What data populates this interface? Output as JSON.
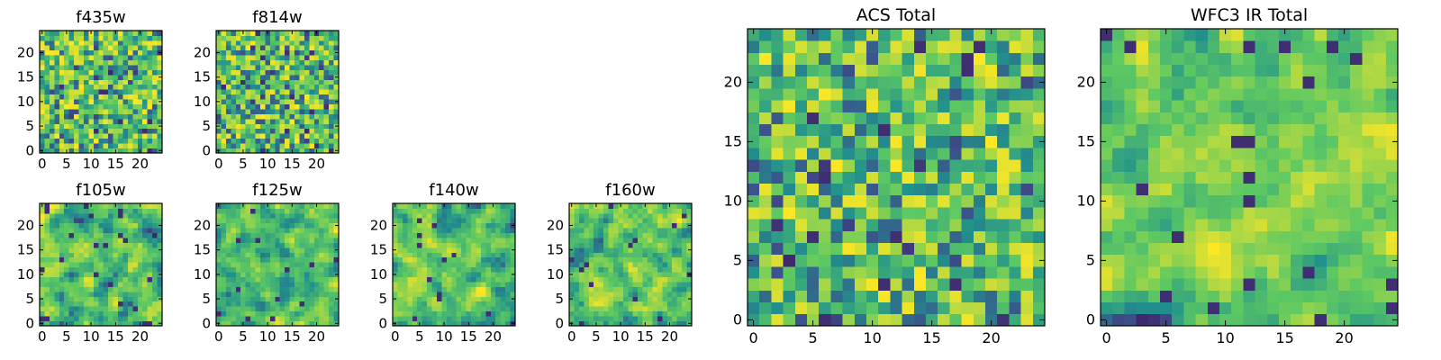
{
  "figure": {
    "background": "#ffffff"
  },
  "chart_data": [
    {
      "type": "heatmap",
      "title": "f435w",
      "seed": 11,
      "smooth": 0,
      "grid": false,
      "xlim": [
        -0.5,
        24.5
      ],
      "ylim": [
        -0.5,
        24.5
      ],
      "xticks": [
        0,
        5,
        10,
        15,
        20
      ],
      "yticks": [
        0,
        5,
        10,
        15,
        20
      ],
      "colormap": [
        "#440154",
        "#3b528b",
        "#21918c",
        "#5ec962",
        "#fde725"
      ]
    },
    {
      "type": "heatmap",
      "title": "f814w",
      "seed": 23,
      "smooth": 0,
      "grid": false,
      "xlim": [
        -0.5,
        24.5
      ],
      "ylim": [
        -0.5,
        24.5
      ],
      "xticks": [
        0,
        5,
        10,
        15,
        20
      ],
      "yticks": [
        0,
        5,
        10,
        15,
        20
      ],
      "colormap": [
        "#440154",
        "#3b528b",
        "#21918c",
        "#5ec962",
        "#fde725"
      ]
    },
    {
      "type": "heatmap",
      "title": "f105w",
      "seed": 37,
      "smooth": 1,
      "grid": false,
      "xlim": [
        -0.5,
        24.5
      ],
      "ylim": [
        -0.5,
        24.5
      ],
      "xticks": [
        0,
        5,
        10,
        15,
        20
      ],
      "yticks": [
        0,
        5,
        10,
        15,
        20
      ],
      "colormap": [
        "#440154",
        "#3b528b",
        "#21918c",
        "#5ec962",
        "#fde725"
      ]
    },
    {
      "type": "heatmap",
      "title": "f125w",
      "seed": 41,
      "smooth": 1,
      "grid": false,
      "xlim": [
        -0.5,
        24.5
      ],
      "ylim": [
        -0.5,
        24.5
      ],
      "xticks": [
        0,
        5,
        10,
        15,
        20
      ],
      "yticks": [
        0,
        5,
        10,
        15,
        20
      ],
      "colormap": [
        "#440154",
        "#3b528b",
        "#21918c",
        "#5ec962",
        "#fde725"
      ]
    },
    {
      "type": "heatmap",
      "title": "f140w",
      "seed": 53,
      "smooth": 1,
      "grid": false,
      "xlim": [
        -0.5,
        24.5
      ],
      "ylim": [
        -0.5,
        24.5
      ],
      "xticks": [
        0,
        5,
        10,
        15,
        20
      ],
      "yticks": [
        0,
        5,
        10,
        15,
        20
      ],
      "colormap": [
        "#440154",
        "#3b528b",
        "#21918c",
        "#5ec962",
        "#fde725"
      ]
    },
    {
      "type": "heatmap",
      "title": "f160w",
      "seed": 67,
      "smooth": 1,
      "grid": false,
      "xlim": [
        -0.5,
        24.5
      ],
      "ylim": [
        -0.5,
        24.5
      ],
      "xticks": [
        0,
        5,
        10,
        15,
        20
      ],
      "yticks": [
        0,
        5,
        10,
        15,
        20
      ],
      "colormap": [
        "#440154",
        "#3b528b",
        "#21918c",
        "#5ec962",
        "#fde725"
      ]
    },
    {
      "type": "heatmap",
      "title": "ACS Total",
      "seed": 79,
      "smooth": 0,
      "grid": false,
      "xlim": [
        -0.5,
        24.5
      ],
      "ylim": [
        -0.5,
        24.5
      ],
      "xticks": [
        0,
        5,
        10,
        15,
        20
      ],
      "yticks": [
        0,
        5,
        10,
        15,
        20
      ],
      "colormap": [
        "#440154",
        "#3b528b",
        "#21918c",
        "#5ec962",
        "#fde725"
      ]
    },
    {
      "type": "heatmap",
      "title": "WFC3 IR Total",
      "seed": 97,
      "smooth": 1,
      "grid": false,
      "xlim": [
        -0.5,
        24.5
      ],
      "ylim": [
        -0.5,
        24.5
      ],
      "xticks": [
        0,
        5,
        10,
        15,
        20
      ],
      "yticks": [
        0,
        5,
        10,
        15,
        20
      ],
      "colormap": [
        "#440154",
        "#3b528b",
        "#21918c",
        "#5ec962",
        "#fde725"
      ]
    }
  ]
}
